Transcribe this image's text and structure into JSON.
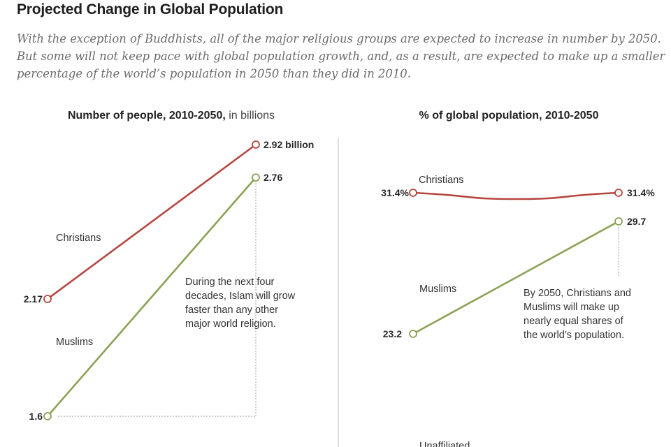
{
  "header": {
    "title": "Projected Change in Global Population",
    "subtitle": "With the exception of Buddhists, all of the major religious groups are expected to increase in number by 2050. But some will not keep pace with global population growth, and, as a result, are expected to make up a smaller percentage of the world’s population in 2050 than they did in 2010."
  },
  "colors": {
    "christians": "#b5473f",
    "muslims": "#8ba155",
    "divider": "#dddddd",
    "guide": "#b0b0b0"
  },
  "chart_data": [
    {
      "type": "line",
      "title_bold": "Number of people, 2010-2050,",
      "title_light": " in billions",
      "x": [
        "2010",
        "2050"
      ],
      "unit": "billions",
      "ylim": [
        1.6,
        2.92
      ],
      "series": [
        {
          "name": "Christians",
          "values": [
            2.17,
            2.92
          ],
          "labels": [
            "2.17",
            "2.92 billion"
          ]
        },
        {
          "name": "Muslims",
          "values": [
            1.6,
            2.76
          ],
          "labels": [
            "1.6",
            "2.76"
          ]
        }
      ],
      "annotation": [
        "During the next four",
        "decades, Islam will grow",
        "faster than any other",
        "major world religion."
      ]
    },
    {
      "type": "line",
      "title_bold": "% of global population, 2010-2050",
      "title_light": "",
      "x": [
        "2010",
        "2050"
      ],
      "unit": "percent",
      "series": [
        {
          "name": "Christians",
          "values": [
            31.4,
            31.4
          ],
          "labels": [
            "31.4%",
            "31.4%"
          ]
        },
        {
          "name": "Muslims",
          "values": [
            23.2,
            29.7
          ],
          "labels": [
            "23.2",
            "29.7"
          ]
        },
        {
          "name": "Unaffiliated",
          "values": [],
          "labels": []
        }
      ],
      "annotation": [
        "By 2050, Christians and",
        "Muslims will make up",
        "nearly equal shares of",
        "the world’s population."
      ]
    }
  ]
}
